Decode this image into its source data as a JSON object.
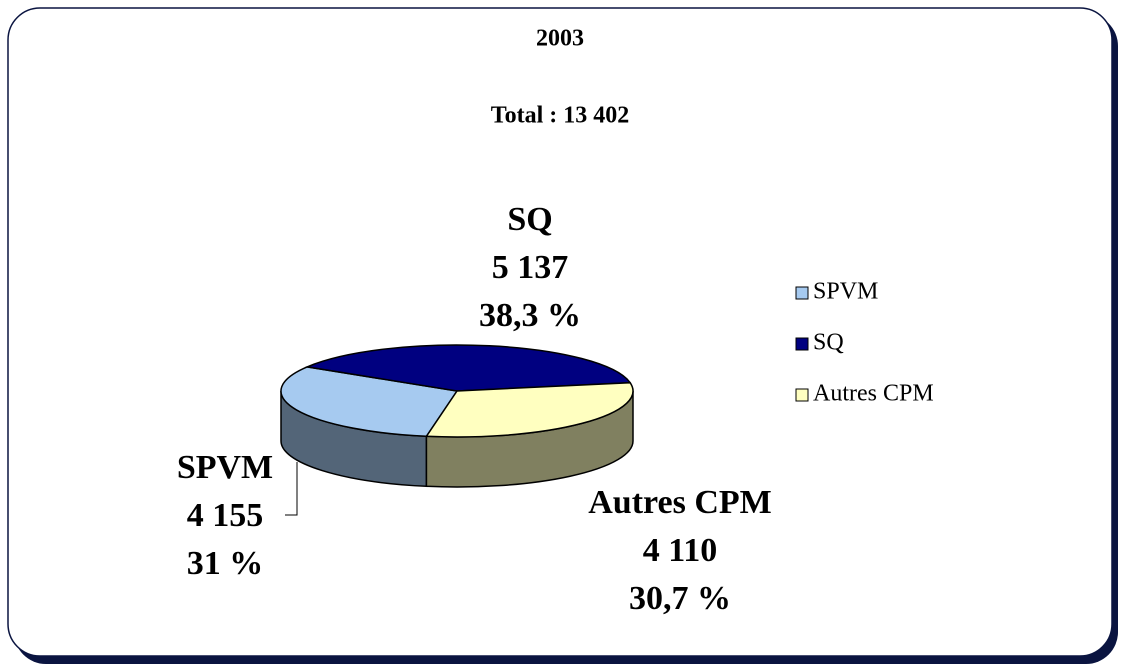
{
  "chart_data": {
    "type": "pie3d",
    "title": "2003",
    "subtitle": "Total : 13 402",
    "categories": [
      "SPVM",
      "SQ",
      "Autres CPM"
    ],
    "values": [
      4155,
      5137,
      4110
    ],
    "value_labels": [
      "4 155",
      "5 137",
      "4 110"
    ],
    "percentages": [
      31,
      38.3,
      30.7
    ],
    "percentage_labels": [
      "31 %",
      "38,3 %",
      "30,7 %"
    ],
    "colors": [
      "#a6caf0",
      "#000080",
      "#ffffc0"
    ],
    "legend": "right"
  }
}
